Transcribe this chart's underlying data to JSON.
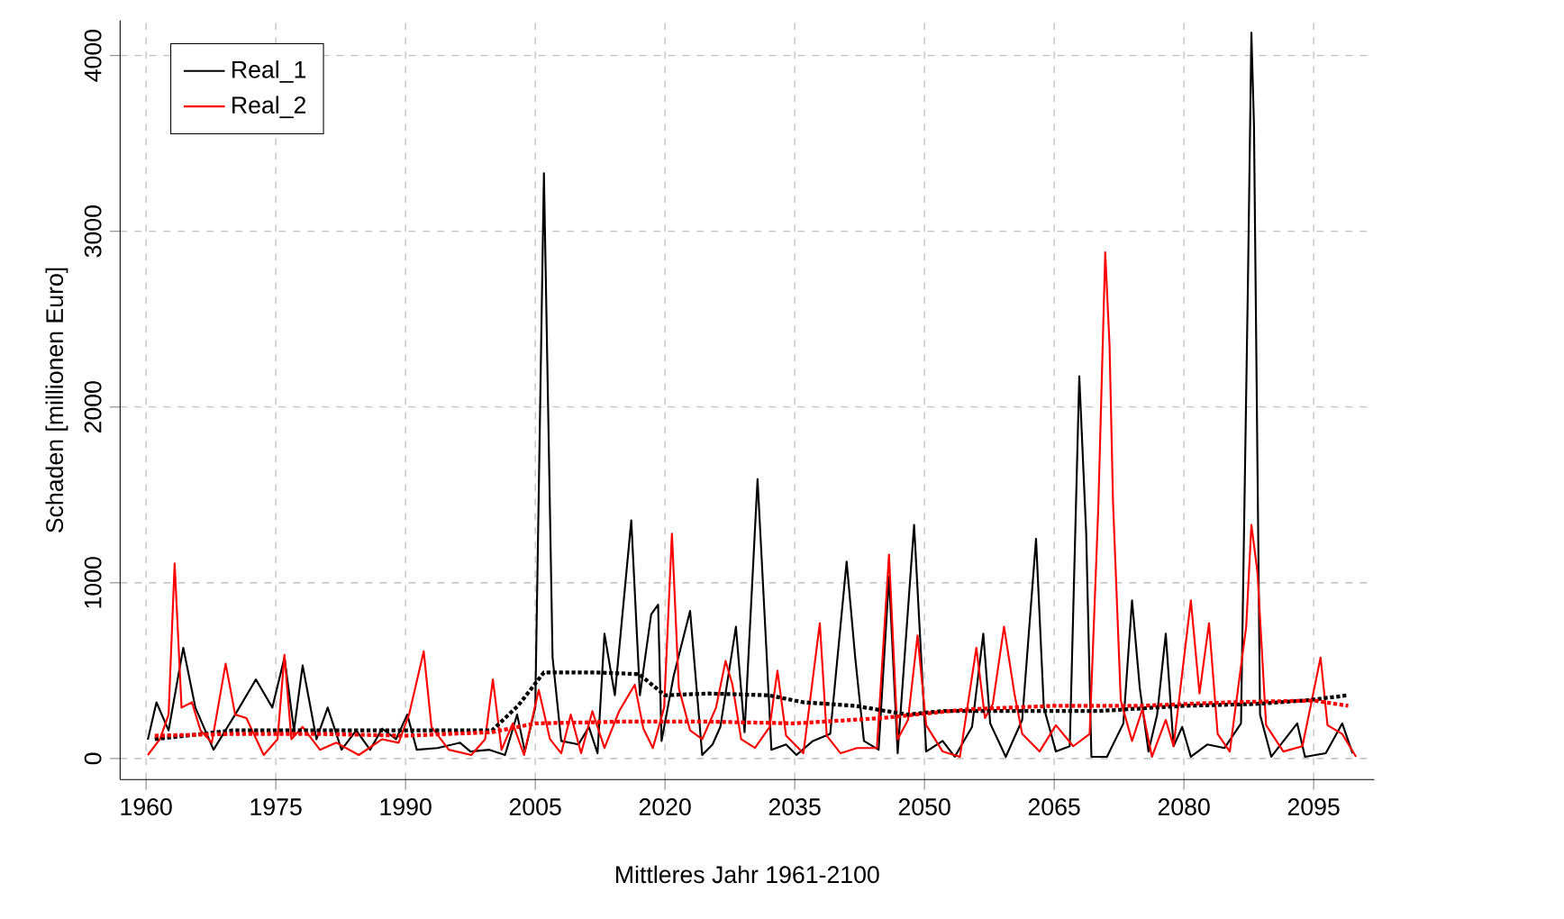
{
  "chart_data": {
    "type": "line",
    "xlabel": "Mittleres Jahr 1961-2100",
    "ylabel": "Schaden [millionen Euro]",
    "xlim": [
      1957,
      2102
    ],
    "ylim": [
      -120,
      4200
    ],
    "xticks": [
      1960,
      1975,
      1990,
      2005,
      2020,
      2035,
      2050,
      2065,
      2080,
      2095
    ],
    "yticks": [
      0,
      1000,
      2000,
      3000,
      4000
    ],
    "grid": true,
    "legend": "top left",
    "marker": "none",
    "series": [
      {
        "name": "Real_1",
        "color": "#000000",
        "line_style": "solid",
        "x": [
          1960.2,
          1961.2,
          1962.6,
          1964.3,
          1965.7,
          1967.8,
          1970.3,
          1972.7,
          1974.6,
          1976,
          1977.1,
          1978.1,
          1979.7,
          1981,
          1982.6,
          1984.3,
          1985.9,
          1987.3,
          1988.9,
          1990.2,
          1991.3,
          1993.7,
          1996.3,
          1997.5,
          1999.7,
          2001.5,
          2002.9,
          2003.8,
          2005,
          2006,
          2007,
          2008,
          2010,
          2011.2,
          2012.2,
          2013,
          2014.2,
          2016.1,
          2017.1,
          2018.4,
          2019.2,
          2019.6,
          2021,
          2022.9,
          2024.3,
          2025.5,
          2026.4,
          2028.2,
          2029.2,
          2030.7,
          2031.7,
          2032.3,
          2034,
          2035.2,
          2037.1,
          2039.1,
          2041,
          2042,
          2043,
          2044.7,
          2045.9,
          2046.9,
          2048.8,
          2050.2,
          2052.1,
          2053.5,
          2055.5,
          2056.8,
          2057.6,
          2059.4,
          2061.3,
          2062.9,
          2063.8,
          2065.2,
          2066.8,
          2067.9,
          2068.7,
          2069.3,
          2071.1,
          2073,
          2074,
          2074.9,
          2075.9,
          2076.9,
          2077.9,
          2078.8,
          2079.8,
          2080.8,
          2082.7,
          2084.7,
          2086.6,
          2087.4,
          2087.8,
          2088.1,
          2088.8,
          2090.1,
          2093.1,
          2094,
          2096.4,
          2098.3,
          2099.5
        ],
        "values": [
          107,
          320,
          160,
          630,
          290,
          50,
          250,
          450,
          290,
          575,
          160,
          530,
          110,
          290,
          50,
          160,
          50,
          170,
          110,
          250,
          50,
          60,
          90,
          40,
          50,
          20,
          250,
          40,
          290,
          3330,
          575,
          100,
          80,
          180,
          30,
          710,
          360,
          1355,
          360,
          820,
          875,
          100,
          470,
          840,
          20,
          80,
          180,
          750,
          150,
          1590,
          640,
          50,
          80,
          20,
          100,
          140,
          1120,
          570,
          100,
          50,
          1035,
          30,
          1330,
          40,
          100,
          10,
          180,
          710,
          200,
          10,
          220,
          1250,
          290,
          40,
          70,
          2175,
          1280,
          10,
          10,
          200,
          900,
          400,
          40,
          250,
          710,
          70,
          180,
          10,
          80,
          60,
          200,
          2710,
          4130,
          3600,
          250,
          10,
          200,
          10,
          30,
          200,
          30
        ]
      },
      {
        "name": "Real_2",
        "color": "#ff0000",
        "line_style": "solid",
        "x": [
          1960.2,
          1961.6,
          1962.6,
          1963.3,
          1964.1,
          1965.3,
          1966.3,
          1967.6,
          1969.2,
          1970.3,
          1971.6,
          1973.6,
          1975.2,
          1976,
          1976.8,
          1978.1,
          1980.1,
          1982,
          1984.6,
          1987.3,
          1989.2,
          1990.4,
          1992.1,
          1993,
          1995,
          1997.6,
          1999.2,
          2000.1,
          2001.1,
          2002.4,
          2003.7,
          2005.4,
          2006.7,
          2008,
          2009.1,
          2010.3,
          2011.6,
          2013,
          2014.7,
          2016.5,
          2017.5,
          2018.6,
          2019.9,
          2020.8,
          2021.6,
          2022.9,
          2024.3,
          2025.9,
          2027,
          2027.8,
          2028.8,
          2030.4,
          2032.1,
          2033,
          2034,
          2036,
          2037.9,
          2038.7,
          2040.3,
          2042.2,
          2044.5,
          2045.9,
          2046.9,
          2048.1,
          2049.2,
          2050.2,
          2052.1,
          2054.1,
          2056,
          2057,
          2057.9,
          2059.2,
          2060.4,
          2061.3,
          2063.3,
          2065.2,
          2067.2,
          2069.1,
          2070.1,
          2070.9,
          2071.4,
          2071.8,
          2072.7,
          2074,
          2075.2,
          2076.3,
          2077.9,
          2078.8,
          2080.8,
          2081.8,
          2082.9,
          2083.9,
          2085.3,
          2087.2,
          2087.8,
          2088.5,
          2089.5,
          2091.5,
          2093.7,
          2095.8,
          2096.6,
          2098.3,
          2099.9
        ],
        "values": [
          20,
          110,
          250,
          1110,
          290,
          320,
          160,
          90,
          540,
          250,
          230,
          20,
          110,
          590,
          110,
          180,
          50,
          90,
          20,
          110,
          90,
          250,
          610,
          180,
          50,
          20,
          110,
          450,
          50,
          200,
          20,
          390,
          110,
          30,
          250,
          30,
          270,
          60,
          270,
          420,
          170,
          60,
          290,
          1280,
          400,
          160,
          110,
          290,
          555,
          420,
          110,
          60,
          180,
          500,
          130,
          30,
          770,
          130,
          30,
          60,
          60,
          1160,
          110,
          220,
          700,
          190,
          40,
          10,
          630,
          230,
          310,
          750,
          370,
          140,
          40,
          190,
          70,
          140,
          1430,
          2880,
          2350,
          1460,
          330,
          100,
          280,
          10,
          220,
          70,
          900,
          370,
          770,
          140,
          40,
          750,
          1330,
          1060,
          190,
          40,
          70,
          575,
          190,
          140,
          10
        ]
      },
      {
        "color": "#000000",
        "line_style": "dotted",
        "x": [
          1961,
          1970,
          1980,
          1990,
          2000,
          2003,
          2006,
          2012,
          2017,
          2020,
          2025,
          2032,
          2036,
          2042,
          2048,
          2052,
          2060,
          2070,
          2080,
          2088,
          2094,
          2099
        ],
        "values": [
          110,
          160,
          160,
          160,
          160,
          300,
          490,
          490,
          480,
          360,
          370,
          360,
          320,
          300,
          250,
          270,
          270,
          270,
          300,
          310,
          330,
          360
        ]
      },
      {
        "color": "#ff0000",
        "line_style": "dotted",
        "x": [
          1961,
          1970,
          1980,
          1990,
          2000,
          2005,
          2015,
          2025,
          2035,
          2045,
          2055,
          2065,
          2075,
          2085,
          2095,
          2099
        ],
        "values": [
          130,
          140,
          140,
          130,
          150,
          200,
          210,
          210,
          200,
          230,
          280,
          300,
          300,
          320,
          330,
          300
        ]
      }
    ]
  }
}
